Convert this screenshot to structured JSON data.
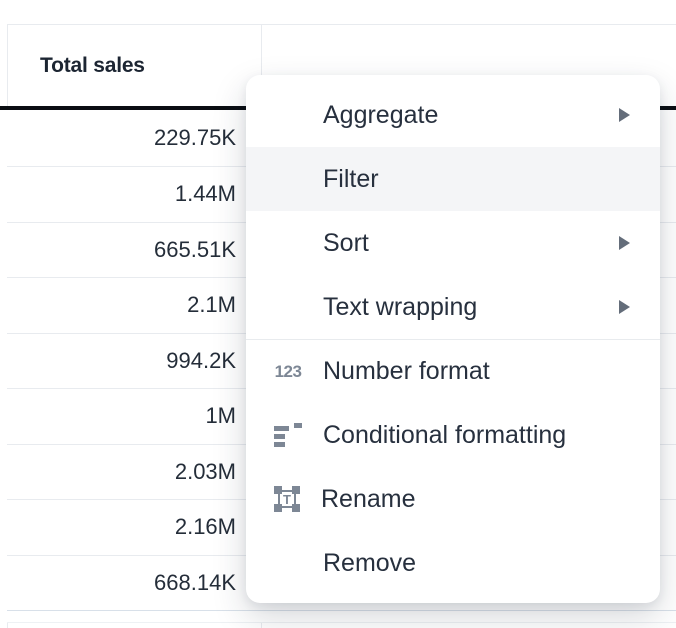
{
  "table": {
    "header": {
      "label": "Total sales"
    },
    "rows": [
      {
        "value": "229.75K"
      },
      {
        "value": "1.44M"
      },
      {
        "value": "665.51K"
      },
      {
        "value": "2.1M"
      },
      {
        "value": "994.2K"
      },
      {
        "value": "1M"
      },
      {
        "value": "2.03M"
      },
      {
        "value": "2.16M"
      },
      {
        "value": "668.14K",
        "state": "last"
      }
    ]
  },
  "menu": {
    "items": [
      {
        "label": "Aggregate",
        "arrow_state": "submenu-visible"
      },
      {
        "label": "Filter",
        "state": "highlighted"
      },
      {
        "label": "Sort",
        "arrow_state": "submenu-visible"
      },
      {
        "label": "Text wrapping",
        "arrow_state": "submenu-visible"
      },
      {
        "label": "Number format",
        "state": "divider-before",
        "icon_name": "number-format-icon"
      },
      {
        "label": "Conditional formatting",
        "icon_name": "conditional-formatting-icon"
      },
      {
        "label": "Rename",
        "icon_name": "rename-icon"
      },
      {
        "label": "Remove"
      }
    ]
  },
  "colors": {
    "menu_highlight": "#f4f5f7",
    "icon_gray": "#7d8795",
    "header_underline": "#0a0d12",
    "row_separator": "#e8ebef",
    "selected_row_separator": "#d8e0e9",
    "menu_text": "#27303e",
    "cell_text": "#242d39"
  }
}
